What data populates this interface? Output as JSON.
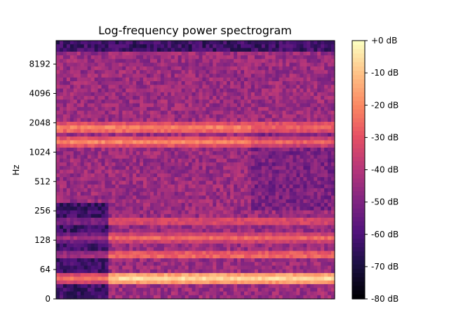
{
  "chart_data": {
    "type": "heatmap",
    "title": "Log-frequency power spectrogram",
    "xlabel": "",
    "ylabel": "Hz",
    "y_scale": "log",
    "y_ticks": [
      "0",
      "64",
      "128",
      "256",
      "512",
      "1024",
      "2048",
      "4096",
      "8192"
    ],
    "x_ticks": [],
    "colormap": "magma",
    "colorbar": {
      "label_ticks": [
        "+0 dB",
        "-10 dB",
        "-20 dB",
        "-30 dB",
        "-40 dB",
        "-50 dB",
        "-60 dB",
        "-70 dB",
        "-80 dB"
      ],
      "range_db": [
        -80,
        0
      ]
    },
    "bands_hz": [
      {
        "freq": 45,
        "level_db": -5
      },
      {
        "freq": 90,
        "level_db": -22
      },
      {
        "freq": 135,
        "level_db": -25
      },
      {
        "freq": 200,
        "level_db": -28
      },
      {
        "freq": 1300,
        "level_db": -20
      },
      {
        "freq": 1800,
        "level_db": -18
      }
    ],
    "grid": false
  }
}
